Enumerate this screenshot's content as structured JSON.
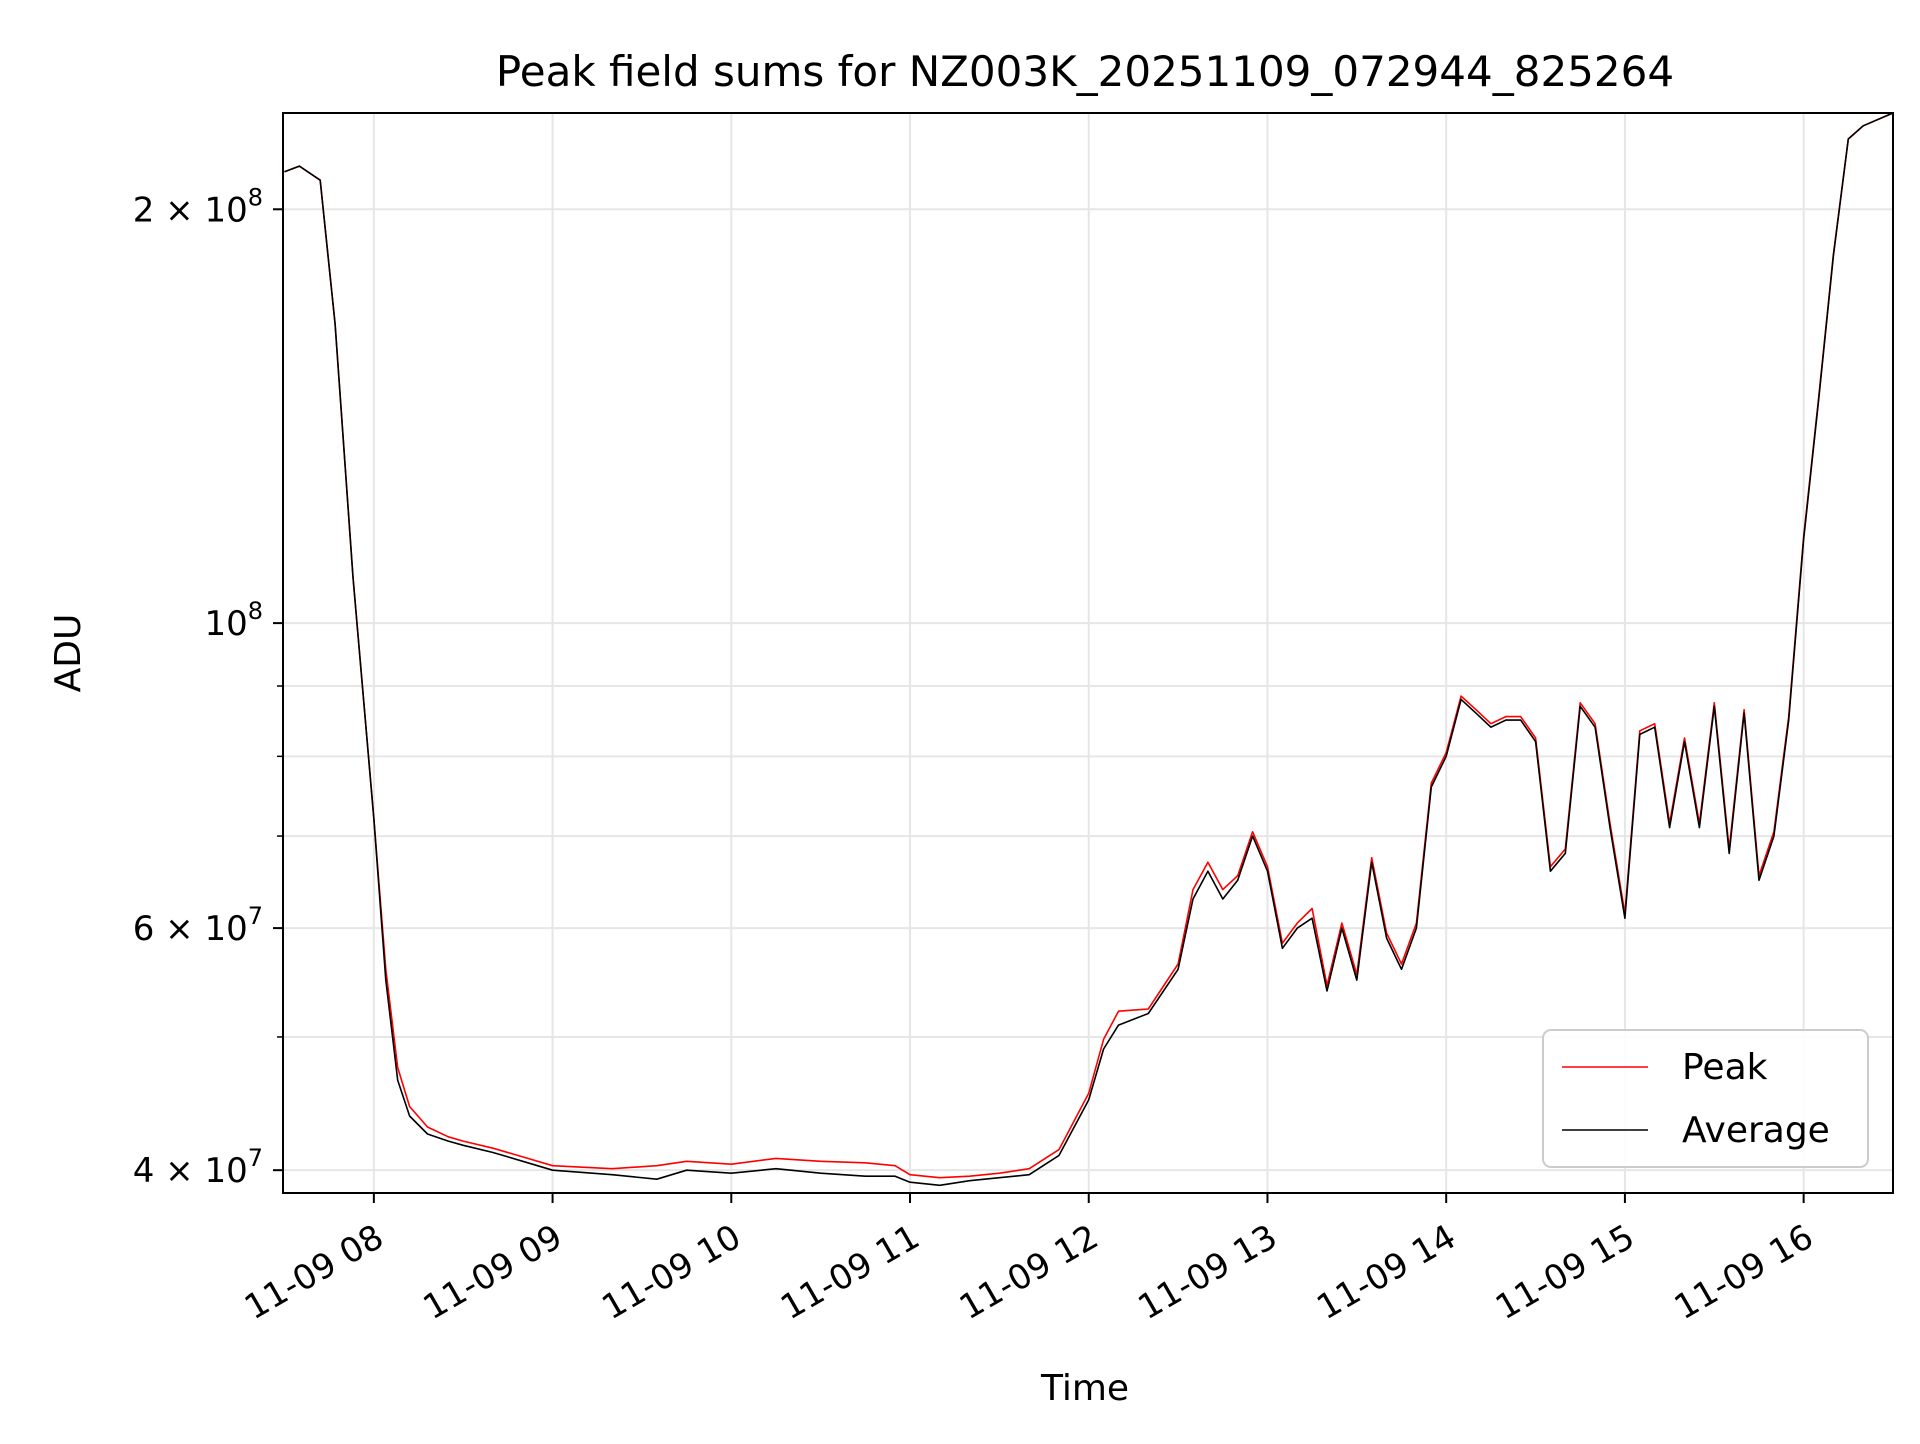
{
  "chart_data": {
    "type": "line",
    "title": "Peak field sums for NZ003K_20251109_072944_825264",
    "xlabel": "Time",
    "ylabel": "ADU",
    "yscale": "log",
    "ylim": [
      38500000,
      235000000
    ],
    "xlim": [
      "11-09 07:29:30",
      "11-09 16:30:00"
    ],
    "grid": true,
    "legend_position": "lower right",
    "x_ticks": [
      "11-09 08",
      "11-09 09",
      "11-09 10",
      "11-09 11",
      "11-09 12",
      "11-09 13",
      "11-09 14",
      "11-09 15",
      "11-09 16"
    ],
    "y_major_ticks": [
      {
        "value": 40000000,
        "mantissa": "4",
        "exponent": "7"
      },
      {
        "value": 60000000,
        "mantissa": "6",
        "exponent": "7"
      },
      {
        "value": 100000000,
        "mantissa": "",
        "exponent": "8"
      },
      {
        "value": 200000000,
        "mantissa": "2",
        "exponent": "8"
      }
    ],
    "y_minor_ticks": [
      50000000,
      70000000,
      80000000,
      90000000
    ],
    "series": [
      {
        "name": "Peak",
        "color": "#ff0000"
      },
      {
        "name": "Average",
        "color": "#000000"
      }
    ],
    "x": [
      "11-09 07:30",
      "11-09 07:35",
      "11-09 07:42",
      "11-09 07:47",
      "11-09 07:53",
      "11-09 08:00",
      "11-09 08:04",
      "11-09 08:08",
      "11-09 08:12",
      "11-09 08:18",
      "11-09 08:25",
      "11-09 08:30",
      "11-09 08:40",
      "11-09 08:50",
      "11-09 09:00",
      "11-09 09:20",
      "11-09 09:35",
      "11-09 09:45",
      "11-09 10:00",
      "11-09 10:15",
      "11-09 10:30",
      "11-09 10:45",
      "11-09 10:55",
      "11-09 11:00",
      "11-09 11:10",
      "11-09 11:20",
      "11-09 11:30",
      "11-09 11:40",
      "11-09 11:50",
      "11-09 12:00",
      "11-09 12:05",
      "11-09 12:10",
      "11-09 12:20",
      "11-09 12:30",
      "11-09 12:35",
      "11-09 12:40",
      "11-09 12:45",
      "11-09 12:50",
      "11-09 12:55",
      "11-09 13:00",
      "11-09 13:05",
      "11-09 13:10",
      "11-09 13:15",
      "11-09 13:20",
      "11-09 13:25",
      "11-09 13:30",
      "11-09 13:35",
      "11-09 13:40",
      "11-09 13:45",
      "11-09 13:50",
      "11-09 13:55",
      "11-09 14:00",
      "11-09 14:05",
      "11-09 14:10",
      "11-09 14:15",
      "11-09 14:20",
      "11-09 14:25",
      "11-09 14:30",
      "11-09 14:35",
      "11-09 14:40",
      "11-09 14:45",
      "11-09 14:50",
      "11-09 14:55",
      "11-09 15:00",
      "11-09 15:05",
      "11-09 15:10",
      "11-09 15:15",
      "11-09 15:20",
      "11-09 15:25",
      "11-09 15:30",
      "11-09 15:35",
      "11-09 15:40",
      "11-09 15:45",
      "11-09 15:50",
      "11-09 15:55",
      "11-09 16:00",
      "11-09 16:05",
      "11-09 16:10",
      "11-09 16:15",
      "11-09 16:20",
      "11-09 16:30"
    ],
    "average": [
      213000000,
      215000000,
      210000000,
      165000000,
      108000000,
      72000000,
      55000000,
      46500000,
      43800000,
      42500000,
      42000000,
      41700000,
      41200000,
      40600000,
      40000000,
      39700000,
      39400000,
      40000000,
      39800000,
      40100000,
      39800000,
      39600000,
      39600000,
      39200000,
      39000000,
      39300000,
      39500000,
      39700000,
      41000000,
      45000000,
      49000000,
      51000000,
      52000000,
      56000000,
      63000000,
      66000000,
      63000000,
      65000000,
      70000000,
      66000000,
      58000000,
      60000000,
      61000000,
      54000000,
      60000000,
      55000000,
      67000000,
      59000000,
      56000000,
      60000000,
      76000000,
      80000000,
      88000000,
      86000000,
      84000000,
      85000000,
      85000000,
      82000000,
      66000000,
      68000000,
      87000000,
      84000000,
      71000000,
      61000000,
      83000000,
      84000000,
      71000000,
      82000000,
      71000000,
      87000000,
      68000000,
      86000000,
      65000000,
      70000000,
      85000000,
      115000000,
      145000000,
      185000000,
      225000000,
      230000000,
      235000000
    ],
    "peak": [
      213000000,
      215000000,
      210000000,
      165000000,
      108000000,
      72000000,
      56000000,
      47500000,
      44500000,
      43000000,
      42300000,
      42000000,
      41500000,
      40900000,
      40300000,
      40100000,
      40300000,
      40600000,
      40400000,
      40800000,
      40600000,
      40500000,
      40300000,
      39700000,
      39500000,
      39600000,
      39800000,
      40100000,
      41400000,
      45500000,
      49800000,
      52200000,
      52400000,
      56500000,
      64000000,
      67000000,
      64000000,
      65500000,
      70500000,
      66500000,
      58500000,
      60500000,
      62000000,
      54500000,
      60500000,
      55500000,
      67500000,
      59500000,
      56500000,
      60500000,
      76500000,
      80500000,
      88500000,
      86500000,
      84500000,
      85500000,
      85500000,
      82500000,
      66500000,
      68500000,
      87500000,
      84500000,
      71500000,
      61500000,
      83500000,
      84500000,
      71500000,
      82500000,
      71500000,
      87500000,
      68500000,
      86500000,
      65500000,
      70500000,
      85500000,
      115500000,
      145500000,
      185500000,
      225000000,
      230000000,
      235000000
    ]
  }
}
